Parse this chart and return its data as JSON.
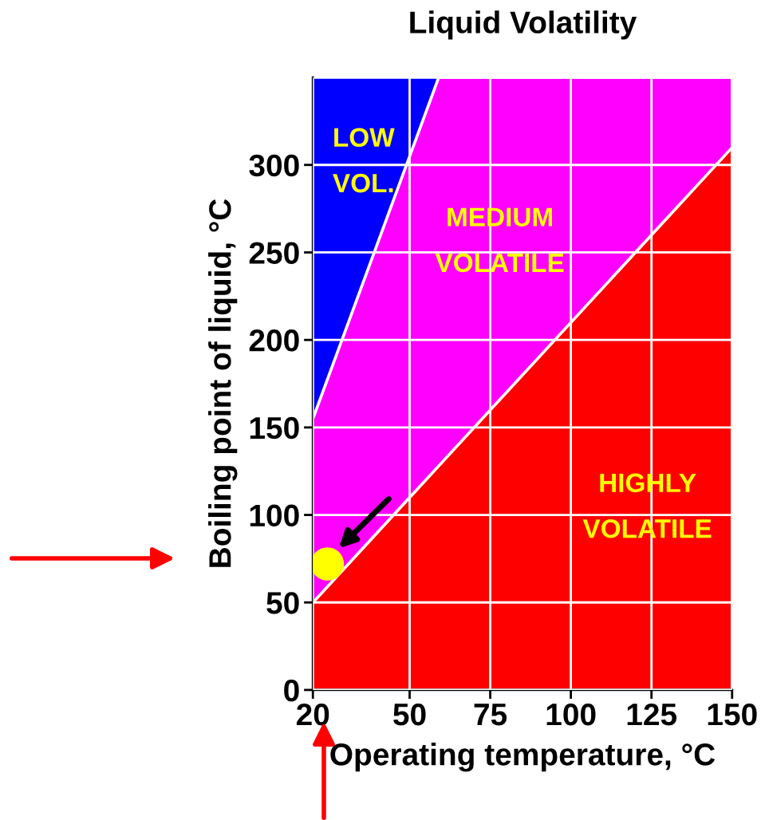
{
  "chart_data": {
    "type": "area",
    "stacked": true,
    "title": "Liquid Volatility",
    "xlabel": "Operating temperature, °C",
    "ylabel": "Boiling point of liquid, °C",
    "x": [
      20,
      59,
      150
    ],
    "series": [
      {
        "name": "HIGHLY\n\nVOLATILE",
        "color": "#ff0000",
        "values": [
          50,
          128,
          310
        ]
      },
      {
        "name": "MEDIUM\n\nVOLATILE",
        "color": "#ff00ff",
        "values": [
          105,
          222,
          40
        ]
      },
      {
        "name": "LOW\n\nVOL.",
        "color": "#0000ff",
        "values": [
          195,
          0,
          0
        ]
      },
      {
        "type": "scatter",
        "color": "#ffff00",
        "x": [
          24.5
        ],
        "values": [
          72
        ]
      }
    ],
    "xlim": [
      20,
      150
    ],
    "ylim": [
      0,
      350
    ],
    "xticks": [
      20,
      50,
      75,
      100,
      125,
      150
    ],
    "yticks": [
      0,
      50,
      100,
      150,
      200,
      250,
      300
    ],
    "grid": true,
    "legend": false
  }
}
